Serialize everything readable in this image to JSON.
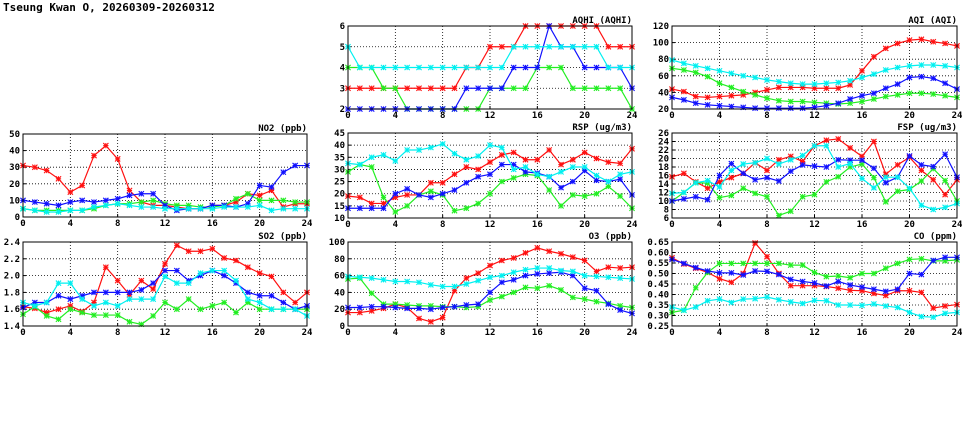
{
  "title": "Tseung Kwan O, 20260309-20260312",
  "colors": {
    "red": "#ff1010",
    "green": "#22ee22",
    "blue": "#1010ff",
    "cyan": "#00f0f0"
  },
  "chart_data": [
    {
      "id": "aqhi",
      "type": "line",
      "title": "AQHI (AQHI)",
      "xlim": [
        0,
        24
      ],
      "xticks": [
        "0",
        "4",
        "8",
        "12",
        "16",
        "20",
        "24"
      ],
      "ylim": [
        2,
        6
      ],
      "yticks": [
        "2",
        "3",
        "4",
        "5",
        "6"
      ],
      "grid": true,
      "series": [
        {
          "color": "#ff1010",
          "values": [
            3,
            3,
            3,
            3,
            3,
            3,
            3,
            3,
            3,
            3,
            4,
            4,
            5,
            5,
            5,
            6,
            6,
            6,
            6,
            6,
            6,
            6,
            5,
            5,
            5
          ]
        },
        {
          "color": "#22ee22",
          "values": [
            4,
            4,
            4,
            3,
            3,
            2,
            2,
            2,
            2,
            2,
            2,
            2,
            3,
            3,
            3,
            3,
            4,
            4,
            4,
            3,
            3,
            3,
            3,
            3,
            2
          ]
        },
        {
          "color": "#1010ff",
          "values": [
            2,
            2,
            2,
            2,
            2,
            2,
            2,
            2,
            2,
            2,
            3,
            3,
            3,
            3,
            4,
            4,
            4,
            6,
            5,
            5,
            4,
            4,
            4,
            4,
            3
          ]
        },
        {
          "color": "#00f0f0",
          "values": [
            5,
            4,
            4,
            4,
            4,
            4,
            4,
            4,
            4,
            4,
            4,
            4,
            4,
            4,
            5,
            5,
            5,
            5,
            5,
            5,
            5,
            5,
            4,
            4,
            4
          ]
        }
      ]
    },
    {
      "id": "aqi",
      "type": "line",
      "title": "AQI (AQI)",
      "xlim": [
        0,
        24
      ],
      "xticks": [
        "0",
        "4",
        "8",
        "12",
        "16",
        "20",
        "24"
      ],
      "ylim": [
        20,
        120
      ],
      "yticks": [
        "20",
        "40",
        "60",
        "80",
        "100",
        "120"
      ],
      "grid": true,
      "series": [
        {
          "color": "#ff1010",
          "values": [
            44,
            41,
            35,
            34,
            35,
            36,
            37,
            40,
            43,
            46,
            46,
            46,
            45,
            45,
            45,
            49,
            66,
            83,
            93,
            99,
            103,
            104,
            101,
            99,
            96
          ]
        },
        {
          "color": "#22ee22",
          "values": [
            69,
            67,
            64,
            59,
            51,
            46,
            41,
            37,
            33,
            30,
            29,
            29,
            28,
            27,
            26,
            27,
            29,
            32,
            35,
            37,
            39,
            39,
            38,
            36,
            34
          ]
        },
        {
          "color": "#1010ff",
          "values": [
            34,
            31,
            27,
            25,
            24,
            23,
            22,
            21,
            21,
            21,
            21,
            21,
            22,
            24,
            27,
            32,
            36,
            39,
            45,
            50,
            58,
            59,
            57,
            51,
            44
          ]
        },
        {
          "color": "#00f0f0",
          "values": [
            79,
            75,
            72,
            69,
            66,
            63,
            60,
            58,
            55,
            53,
            51,
            50,
            50,
            51,
            52,
            54,
            58,
            62,
            67,
            70,
            72,
            73,
            73,
            72,
            70
          ]
        }
      ]
    },
    {
      "id": "no2",
      "type": "line",
      "title": "NO2 (ppb)",
      "xlim": [
        0,
        24
      ],
      "xticks": [
        "0",
        "4",
        "8",
        "12",
        "16",
        "20",
        "24"
      ],
      "ylim": [
        0,
        50
      ],
      "yticks": [
        "0",
        "10",
        "20",
        "30",
        "40",
        "50"
      ],
      "grid": true,
      "series": [
        {
          "color": "#ff1010",
          "values": [
            31,
            30,
            28,
            23,
            15,
            19,
            37,
            43,
            35,
            16,
            9,
            7,
            7,
            6,
            5,
            5,
            7,
            7,
            9,
            14,
            13,
            16,
            6,
            8,
            8
          ]
        },
        {
          "color": "#22ee22",
          "values": [
            5,
            4,
            4,
            4,
            4,
            4,
            5,
            7,
            8,
            8,
            9,
            10,
            8,
            7,
            7,
            6,
            6,
            7,
            11,
            14,
            10,
            10,
            10,
            9,
            9
          ]
        },
        {
          "color": "#1010ff",
          "values": [
            10,
            9,
            8,
            7,
            9,
            10,
            9,
            10,
            11,
            13,
            14,
            14,
            7,
            4,
            5,
            5,
            7,
            7,
            6,
            8,
            19,
            18,
            27,
            31,
            31
          ]
        },
        {
          "color": "#00f0f0",
          "values": [
            5,
            4,
            3,
            3,
            4,
            4,
            6,
            7,
            8,
            7,
            6,
            6,
            5,
            5,
            5,
            5,
            5,
            6,
            6,
            6,
            7,
            4,
            5,
            5,
            5
          ]
        }
      ]
    },
    {
      "id": "rsp",
      "type": "line",
      "title": "RSP (ug/m3)",
      "xlim": [
        0,
        24
      ],
      "xticks": [
        "0",
        "4",
        "8",
        "12",
        "16",
        "20",
        "24"
      ],
      "ylim": [
        10,
        45
      ],
      "yticks": [
        "10",
        "15",
        "20",
        "25",
        "30",
        "35",
        "40",
        "45"
      ],
      "grid": true,
      "series": [
        {
          "color": "#ff1010",
          "values": [
            19,
            18.5,
            16,
            16,
            18.5,
            19.5,
            19.5,
            24.5,
            24.5,
            28,
            31,
            30,
            33,
            36,
            37,
            34,
            34,
            38,
            32,
            34,
            37,
            34.5,
            33,
            32.5,
            38.5
          ]
        },
        {
          "color": "#22ee22",
          "values": [
            29,
            32,
            31,
            18.5,
            12.5,
            15,
            19.5,
            21,
            19.5,
            13,
            14,
            16,
            20,
            25,
            26.5,
            28,
            27.5,
            21.5,
            15,
            19.5,
            19,
            20,
            23,
            19,
            14
          ]
        },
        {
          "color": "#1010ff",
          "values": [
            14,
            14,
            14,
            14,
            20,
            22,
            19.5,
            18.5,
            20,
            21.5,
            24.5,
            27,
            28,
            32,
            32,
            29,
            28.5,
            27,
            22.5,
            25,
            29.5,
            25.5,
            25,
            26,
            19.5
          ]
        },
        {
          "color": "#00f0f0",
          "values": [
            32.5,
            32,
            35,
            36,
            33.5,
            38,
            38,
            39,
            40.5,
            36.5,
            34,
            35.5,
            40,
            39,
            30,
            31,
            28,
            27,
            29,
            31,
            31,
            27.5,
            25,
            28,
            29
          ]
        }
      ]
    },
    {
      "id": "fsp",
      "type": "line",
      "title": "FSP (ug/m3)",
      "xlim": [
        0,
        24
      ],
      "xticks": [
        "0",
        "4",
        "8",
        "12",
        "16",
        "20",
        "24"
      ],
      "ylim": [
        6,
        26
      ],
      "yticks": [
        "6",
        "8",
        "10",
        "12",
        "14",
        "16",
        "18",
        "20",
        "22",
        "24",
        "26"
      ],
      "grid": true,
      "series": [
        {
          "color": "#ff1010",
          "values": [
            15.7,
            16.5,
            14.5,
            13,
            14.5,
            15.5,
            16.5,
            19,
            17.2,
            19.7,
            20.5,
            19.3,
            23,
            24.3,
            24.6,
            22.5,
            20.5,
            24,
            16.3,
            18.5,
            20.3,
            17.2,
            15,
            11.5,
            15
          ]
        },
        {
          "color": "#22ee22",
          "values": [
            10,
            12,
            14.3,
            14.2,
            10.8,
            11.3,
            13,
            11.8,
            11,
            6.6,
            7.6,
            11,
            11.5,
            14.5,
            15.7,
            18,
            18.7,
            15.5,
            9.8,
            12.3,
            12.7,
            14.7,
            17.6,
            14.8,
            10
          ]
        },
        {
          "color": "#1010ff",
          "values": [
            10,
            10.5,
            11,
            10.3,
            16,
            18.8,
            16.5,
            15,
            15.5,
            14.7,
            17,
            18.5,
            18.2,
            18,
            19.7,
            19.6,
            19.6,
            17.7,
            14.3,
            15.6,
            20.6,
            18.5,
            18.1,
            21,
            15.6
          ]
        },
        {
          "color": "#00f0f0",
          "values": [
            11.8,
            12,
            14.3,
            14.8,
            13.3,
            17.2,
            18.7,
            19,
            20,
            18.7,
            19.7,
            20.7,
            23,
            23,
            18,
            18.8,
            15.3,
            13.1,
            15.6,
            15.6,
            13,
            9,
            8,
            8.5,
            9.4
          ]
        }
      ]
    },
    {
      "id": "so2",
      "type": "line",
      "title": "SO2 (ppb)",
      "xlim": [
        0,
        24
      ],
      "xticks": [
        "0",
        "4",
        "8",
        "12",
        "16",
        "20",
        "24"
      ],
      "ylim": [
        1.4,
        2.4
      ],
      "yticks": [
        "1.4",
        "1.6",
        "1.8",
        "2.0",
        "2.2",
        "2.4"
      ],
      "grid": true,
      "series": [
        {
          "color": "#ff1010",
          "values": [
            1.63,
            1.61,
            1.56,
            1.6,
            1.64,
            1.57,
            1.68,
            2.1,
            1.94,
            1.77,
            1.94,
            1.84,
            2.14,
            2.36,
            2.29,
            2.29,
            2.32,
            2.21,
            2.18,
            2.1,
            2.03,
            1.99,
            1.8,
            1.68,
            1.8
          ]
        },
        {
          "color": "#22ee22",
          "values": [
            1.54,
            1.63,
            1.52,
            1.48,
            1.6,
            1.56,
            1.53,
            1.53,
            1.53,
            1.45,
            1.42,
            1.52,
            1.68,
            1.6,
            1.72,
            1.6,
            1.64,
            1.68,
            1.56,
            1.68,
            1.6,
            1.6,
            1.6,
            1.6,
            1.6
          ]
        },
        {
          "color": "#1010ff",
          "values": [
            1.62,
            1.68,
            1.68,
            1.76,
            1.72,
            1.76,
            1.8,
            1.8,
            1.8,
            1.8,
            1.83,
            1.91,
            2.06,
            2.06,
            1.94,
            2.0,
            2.06,
            2.0,
            1.91,
            1.8,
            1.76,
            1.76,
            1.68,
            1.6,
            1.64
          ]
        },
        {
          "color": "#00f0f0",
          "values": [
            1.68,
            1.64,
            1.68,
            1.91,
            1.91,
            1.72,
            1.64,
            1.68,
            1.64,
            1.72,
            1.72,
            1.72,
            1.99,
            1.91,
            1.91,
            2.03,
            2.06,
            2.06,
            1.94,
            1.72,
            1.68,
            1.6,
            1.6,
            1.6,
            1.52
          ]
        }
      ]
    },
    {
      "id": "o3",
      "type": "line",
      "title": "O3 (ppb)",
      "xlim": [
        0,
        24
      ],
      "xticks": [
        "0",
        "4",
        "8",
        "12",
        "16",
        "20",
        "24"
      ],
      "ylim": [
        0,
        100
      ],
      "yticks": [
        "0",
        "20",
        "40",
        "60",
        "80",
        "100"
      ],
      "grid": true,
      "series": [
        {
          "color": "#ff1010",
          "values": [
            16,
            16,
            18,
            21,
            26,
            22,
            9,
            5,
            10,
            42,
            57,
            63,
            72,
            78,
            81,
            87,
            93,
            89,
            86,
            82,
            78,
            65,
            70,
            69,
            70
          ]
        },
        {
          "color": "#22ee22",
          "values": [
            56,
            57,
            39,
            26,
            26,
            25,
            24,
            24,
            23,
            23,
            22,
            23,
            31,
            35,
            40,
            46,
            45,
            48,
            43,
            34,
            32,
            29,
            27,
            24,
            22
          ]
        },
        {
          "color": "#1010ff",
          "values": [
            22,
            22,
            23,
            23,
            22,
            21,
            21,
            20,
            22,
            23,
            25,
            26,
            40,
            52,
            55,
            60,
            62,
            63,
            64,
            60,
            45,
            42,
            26,
            19,
            15
          ]
        },
        {
          "color": "#00f0f0",
          "values": [
            59,
            58,
            57,
            55,
            53,
            53,
            52,
            49,
            47,
            47,
            50,
            54,
            58,
            60,
            64,
            67,
            69,
            69,
            66,
            65,
            60,
            59,
            58,
            57,
            56
          ]
        }
      ]
    },
    {
      "id": "co",
      "type": "line",
      "title": "CO (ppm)",
      "xlim": [
        0,
        24
      ],
      "xticks": [
        "0",
        "4",
        "8",
        "12",
        "16",
        "20",
        "24"
      ],
      "ylim": [
        0.25,
        0.65
      ],
      "yticks": [
        "0.25",
        "0.30",
        "0.35",
        "0.40",
        "0.45",
        "0.50",
        "0.55",
        "0.60",
        "0.65"
      ],
      "grid": true,
      "series": [
        {
          "color": "#ff1010",
          "values": [
            0.575,
            0.545,
            0.525,
            0.505,
            0.475,
            0.458,
            0.5,
            0.645,
            0.58,
            0.5,
            0.442,
            0.442,
            0.442,
            0.438,
            0.43,
            0.42,
            0.418,
            0.405,
            0.395,
            0.418,
            0.418,
            0.41,
            0.335,
            0.345,
            0.352
          ]
        },
        {
          "color": "#22ee22",
          "values": [
            0.315,
            0.325,
            0.432,
            0.505,
            0.548,
            0.548,
            0.548,
            0.548,
            0.548,
            0.548,
            0.54,
            0.54,
            0.505,
            0.485,
            0.488,
            0.48,
            0.5,
            0.5,
            0.525,
            0.548,
            0.567,
            0.57,
            0.56,
            0.56,
            0.565
          ]
        },
        {
          "color": "#1010ff",
          "values": [
            0.567,
            0.548,
            0.528,
            0.512,
            0.503,
            0.503,
            0.493,
            0.512,
            0.51,
            0.495,
            0.472,
            0.462,
            0.455,
            0.44,
            0.462,
            0.445,
            0.435,
            0.425,
            0.415,
            0.425,
            0.5,
            0.495,
            0.562,
            0.577,
            0.577
          ]
        },
        {
          "color": "#00f0f0",
          "values": [
            0.34,
            0.325,
            0.34,
            0.37,
            0.378,
            0.362,
            0.378,
            0.38,
            0.388,
            0.375,
            0.365,
            0.357,
            0.372,
            0.37,
            0.35,
            0.35,
            0.348,
            0.355,
            0.345,
            0.338,
            0.315,
            0.295,
            0.292,
            0.31,
            0.315
          ]
        }
      ]
    }
  ]
}
